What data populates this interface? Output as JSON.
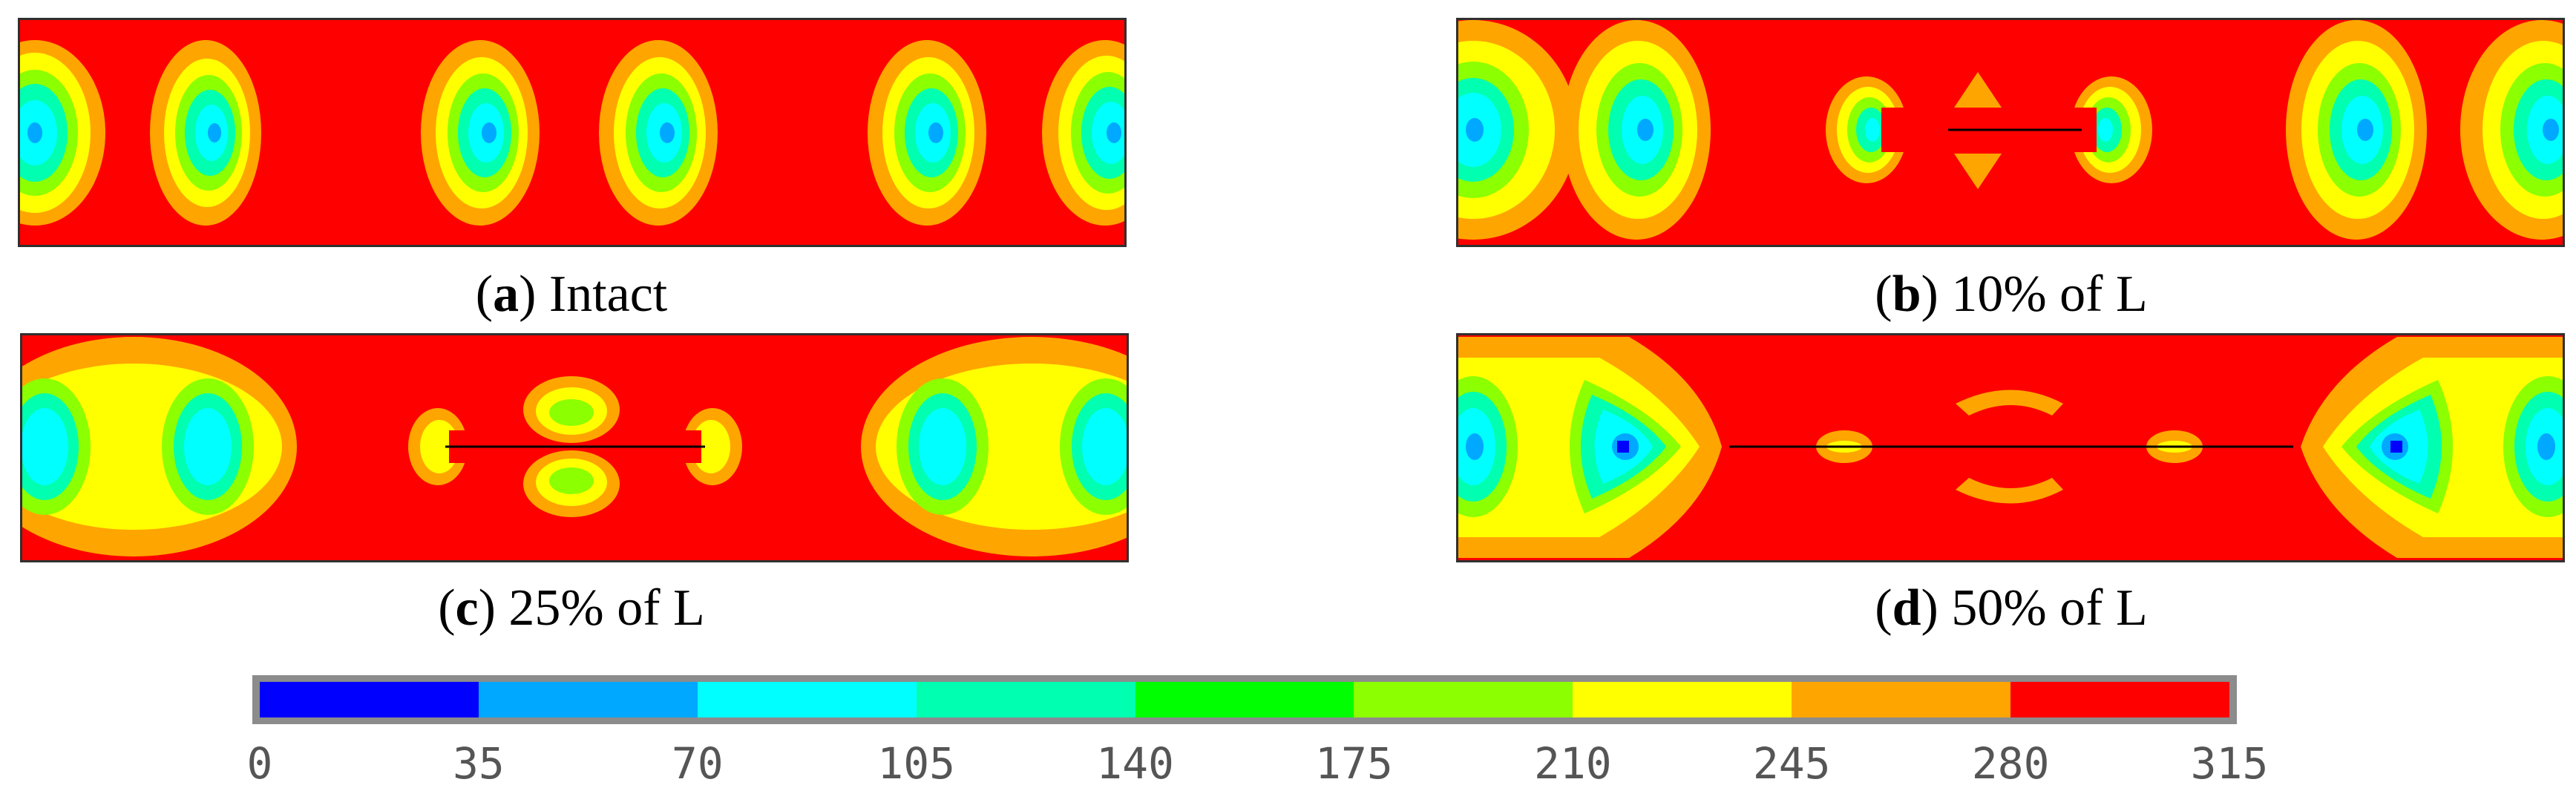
{
  "panels": [
    {
      "id": "a",
      "letter": "a",
      "label": " Intact"
    },
    {
      "id": "b",
      "letter": "b",
      "label": " 10% of L"
    },
    {
      "id": "c",
      "letter": "c",
      "label": " 25% of L"
    },
    {
      "id": "d",
      "letter": "d",
      "label": " 50% of L"
    }
  ],
  "colorbar": {
    "colors": [
      "#0000ff",
      "#00a8ff",
      "#00ffff",
      "#00ffb0",
      "#00ff00",
      "#8cff00",
      "#ffff00",
      "#ffa500",
      "#ff0000"
    ],
    "ticks": [
      "0",
      "35",
      "70",
      "105",
      "140",
      "175",
      "210",
      "245",
      "280",
      "315"
    ]
  }
}
